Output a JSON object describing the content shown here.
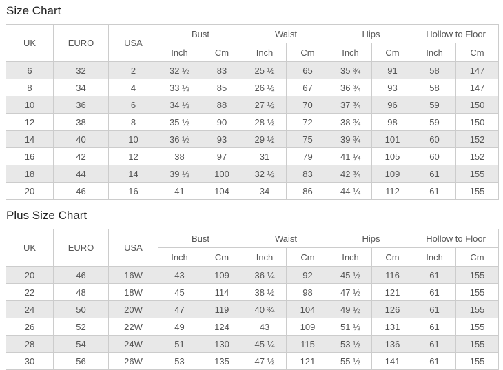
{
  "colors": {
    "stripe": "#e8e8e8",
    "border": "#cccccc",
    "text": "#555555",
    "title": "#222222"
  },
  "tables": [
    {
      "title": "Size Chart",
      "simple_headers": [
        "UK",
        "EURO",
        "USA"
      ],
      "group_headers": [
        "Bust",
        "Waist",
        "Hips",
        "Hollow to Floor"
      ],
      "sub_headers": [
        "Inch",
        "Cm"
      ],
      "rows": [
        [
          "6",
          "32",
          "2",
          "32 ½",
          "83",
          "25 ½",
          "65",
          "35 ¾",
          "91",
          "58",
          "147"
        ],
        [
          "8",
          "34",
          "4",
          "33 ½",
          "85",
          "26 ½",
          "67",
          "36 ¾",
          "93",
          "58",
          "147"
        ],
        [
          "10",
          "36",
          "6",
          "34 ½",
          "88",
          "27 ½",
          "70",
          "37 ¾",
          "96",
          "59",
          "150"
        ],
        [
          "12",
          "38",
          "8",
          "35 ½",
          "90",
          "28 ½",
          "72",
          "38 ¾",
          "98",
          "59",
          "150"
        ],
        [
          "14",
          "40",
          "10",
          "36 ½",
          "93",
          "29 ½",
          "75",
          "39 ¾",
          "101",
          "60",
          "152"
        ],
        [
          "16",
          "42",
          "12",
          "38",
          "97",
          "31",
          "79",
          "41 ¼",
          "105",
          "60",
          "152"
        ],
        [
          "18",
          "44",
          "14",
          "39 ½",
          "100",
          "32 ½",
          "83",
          "42 ¾",
          "109",
          "61",
          "155"
        ],
        [
          "20",
          "46",
          "16",
          "41",
          "104",
          "34",
          "86",
          "44 ¼",
          "112",
          "61",
          "155"
        ]
      ]
    },
    {
      "title": "Plus Size Chart",
      "simple_headers": [
        "UK",
        "EURO",
        "USA"
      ],
      "group_headers": [
        "Bust",
        "Waist",
        "Hips",
        "Hollow to Floor"
      ],
      "sub_headers": [
        "Inch",
        "Cm"
      ],
      "rows": [
        [
          "20",
          "46",
          "16W",
          "43",
          "109",
          "36 ¼",
          "92",
          "45 ½",
          "116",
          "61",
          "155"
        ],
        [
          "22",
          "48",
          "18W",
          "45",
          "114",
          "38 ½",
          "98",
          "47 ½",
          "121",
          "61",
          "155"
        ],
        [
          "24",
          "50",
          "20W",
          "47",
          "119",
          "40 ¾",
          "104",
          "49 ½",
          "126",
          "61",
          "155"
        ],
        [
          "26",
          "52",
          "22W",
          "49",
          "124",
          "43",
          "109",
          "51 ½",
          "131",
          "61",
          "155"
        ],
        [
          "28",
          "54",
          "24W",
          "51",
          "130",
          "45 ¼",
          "115",
          "53 ½",
          "136",
          "61",
          "155"
        ],
        [
          "30",
          "56",
          "26W",
          "53",
          "135",
          "47 ½",
          "121",
          "55 ½",
          "141",
          "61",
          "155"
        ]
      ]
    }
  ]
}
